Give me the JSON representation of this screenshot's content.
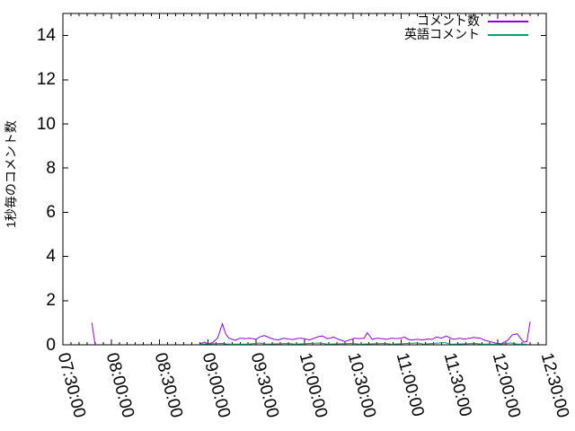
{
  "chart_data": {
    "type": "line",
    "title": "",
    "xlabel": "",
    "ylabel": "1秒毎のコメント数",
    "ylim": [
      0,
      15
    ],
    "yticks": [
      0,
      2,
      4,
      6,
      8,
      10,
      12,
      14
    ],
    "x_range": [
      "07:30:00",
      "12:30:00"
    ],
    "x_major_interval_min": 30,
    "x_minor_interval_min": 5,
    "xticks": [
      "07:30:00",
      "08:00:00",
      "08:30:00",
      "09:00:00",
      "09:30:00",
      "10:00:00",
      "10:30:00",
      "11:00:00",
      "11:30:00",
      "12:00:00",
      "12:30:00"
    ],
    "grid": false,
    "legend_position": "top-right-inside",
    "background": "#ffffff",
    "axis_color": "#000000",
    "series": [
      {
        "name": "コメント数",
        "color": "#9400d3",
        "segments": [
          [
            [
              "07:48",
              1.0
            ],
            [
              "07:50",
              0.0
            ]
          ],
          [
            [
              "08:55",
              0.05
            ],
            [
              "08:58",
              0.12
            ],
            [
              "09:00",
              0.05
            ],
            [
              "09:03",
              0.1
            ],
            [
              "09:06",
              0.3
            ],
            [
              "09:09",
              0.95
            ],
            [
              "09:11",
              0.5
            ],
            [
              "09:13",
              0.3
            ],
            [
              "09:17",
              0.2
            ],
            [
              "09:20",
              0.3
            ],
            [
              "09:23",
              0.28
            ],
            [
              "09:26",
              0.3
            ],
            [
              "09:30",
              0.25
            ],
            [
              "09:32",
              0.35
            ],
            [
              "09:35",
              0.42
            ],
            [
              "09:39",
              0.3
            ],
            [
              "09:41",
              0.25
            ],
            [
              "09:44",
              0.22
            ],
            [
              "09:47",
              0.3
            ],
            [
              "09:50",
              0.26
            ],
            [
              "09:53",
              0.24
            ],
            [
              "09:55",
              0.28
            ],
            [
              "09:58",
              0.3
            ],
            [
              "10:01",
              0.26
            ],
            [
              "10:03",
              0.22
            ],
            [
              "10:06",
              0.3
            ],
            [
              "10:09",
              0.38
            ],
            [
              "10:11",
              0.4
            ],
            [
              "10:14",
              0.28
            ],
            [
              "10:16",
              0.3
            ],
            [
              "10:18",
              0.35
            ],
            [
              "10:21",
              0.25
            ],
            [
              "10:25",
              0.15
            ],
            [
              "10:28",
              0.22
            ],
            [
              "10:31",
              0.3
            ],
            [
              "10:34",
              0.28
            ],
            [
              "10:37",
              0.3
            ],
            [
              "10:39",
              0.55
            ],
            [
              "10:42",
              0.25
            ],
            [
              "10:45",
              0.3
            ],
            [
              "10:48",
              0.28
            ],
            [
              "10:51",
              0.25
            ],
            [
              "10:54",
              0.3
            ],
            [
              "10:57",
              0.28
            ],
            [
              "11:00",
              0.3
            ],
            [
              "11:02",
              0.35
            ],
            [
              "11:04",
              0.26
            ],
            [
              "11:06",
              0.22
            ],
            [
              "11:10",
              0.25
            ],
            [
              "11:13",
              0.22
            ],
            [
              "11:16",
              0.26
            ],
            [
              "11:19",
              0.25
            ],
            [
              "11:22",
              0.35
            ],
            [
              "11:25",
              0.3
            ],
            [
              "11:28",
              0.4
            ],
            [
              "11:31",
              0.28
            ],
            [
              "11:33",
              0.25
            ],
            [
              "11:36",
              0.3
            ],
            [
              "11:39",
              0.26
            ],
            [
              "11:41",
              0.28
            ],
            [
              "11:45",
              0.33
            ],
            [
              "11:49",
              0.3
            ],
            [
              "11:52",
              0.2
            ],
            [
              "11:55",
              0.15
            ],
            [
              "11:59",
              0.07
            ],
            [
              "12:02",
              0.05
            ],
            [
              "12:06",
              0.2
            ],
            [
              "12:09",
              0.45
            ],
            [
              "12:12",
              0.5
            ],
            [
              "12:14",
              0.3
            ],
            [
              "12:16",
              0.12
            ],
            [
              "12:18",
              0.15
            ],
            [
              "12:20",
              1.05
            ]
          ]
        ]
      },
      {
        "name": "英語コメント",
        "color": "#009e73",
        "segments": [
          [
            [
              "08:55",
              0.03
            ],
            [
              "09:09",
              0.06
            ],
            [
              "09:13",
              0.03
            ],
            [
              "09:25",
              0.03
            ],
            [
              "09:32",
              0.08
            ],
            [
              "09:36",
              0.03
            ],
            [
              "09:50",
              0.06
            ],
            [
              "09:54",
              0.03
            ],
            [
              "10:10",
              0.08
            ],
            [
              "10:14",
              0.03
            ],
            [
              "10:30",
              0.06
            ],
            [
              "10:34",
              0.03
            ],
            [
              "10:50",
              0.06
            ],
            [
              "10:54",
              0.03
            ],
            [
              "11:10",
              0.08
            ],
            [
              "11:14",
              0.03
            ],
            [
              "11:27",
              0.1
            ],
            [
              "11:31",
              0.03
            ],
            [
              "11:46",
              0.06
            ],
            [
              "11:50",
              0.03
            ],
            [
              "12:00",
              0.03
            ],
            [
              "12:08",
              0.08
            ],
            [
              "12:12",
              0.03
            ],
            [
              "12:18",
              0.03
            ]
          ]
        ]
      }
    ]
  }
}
